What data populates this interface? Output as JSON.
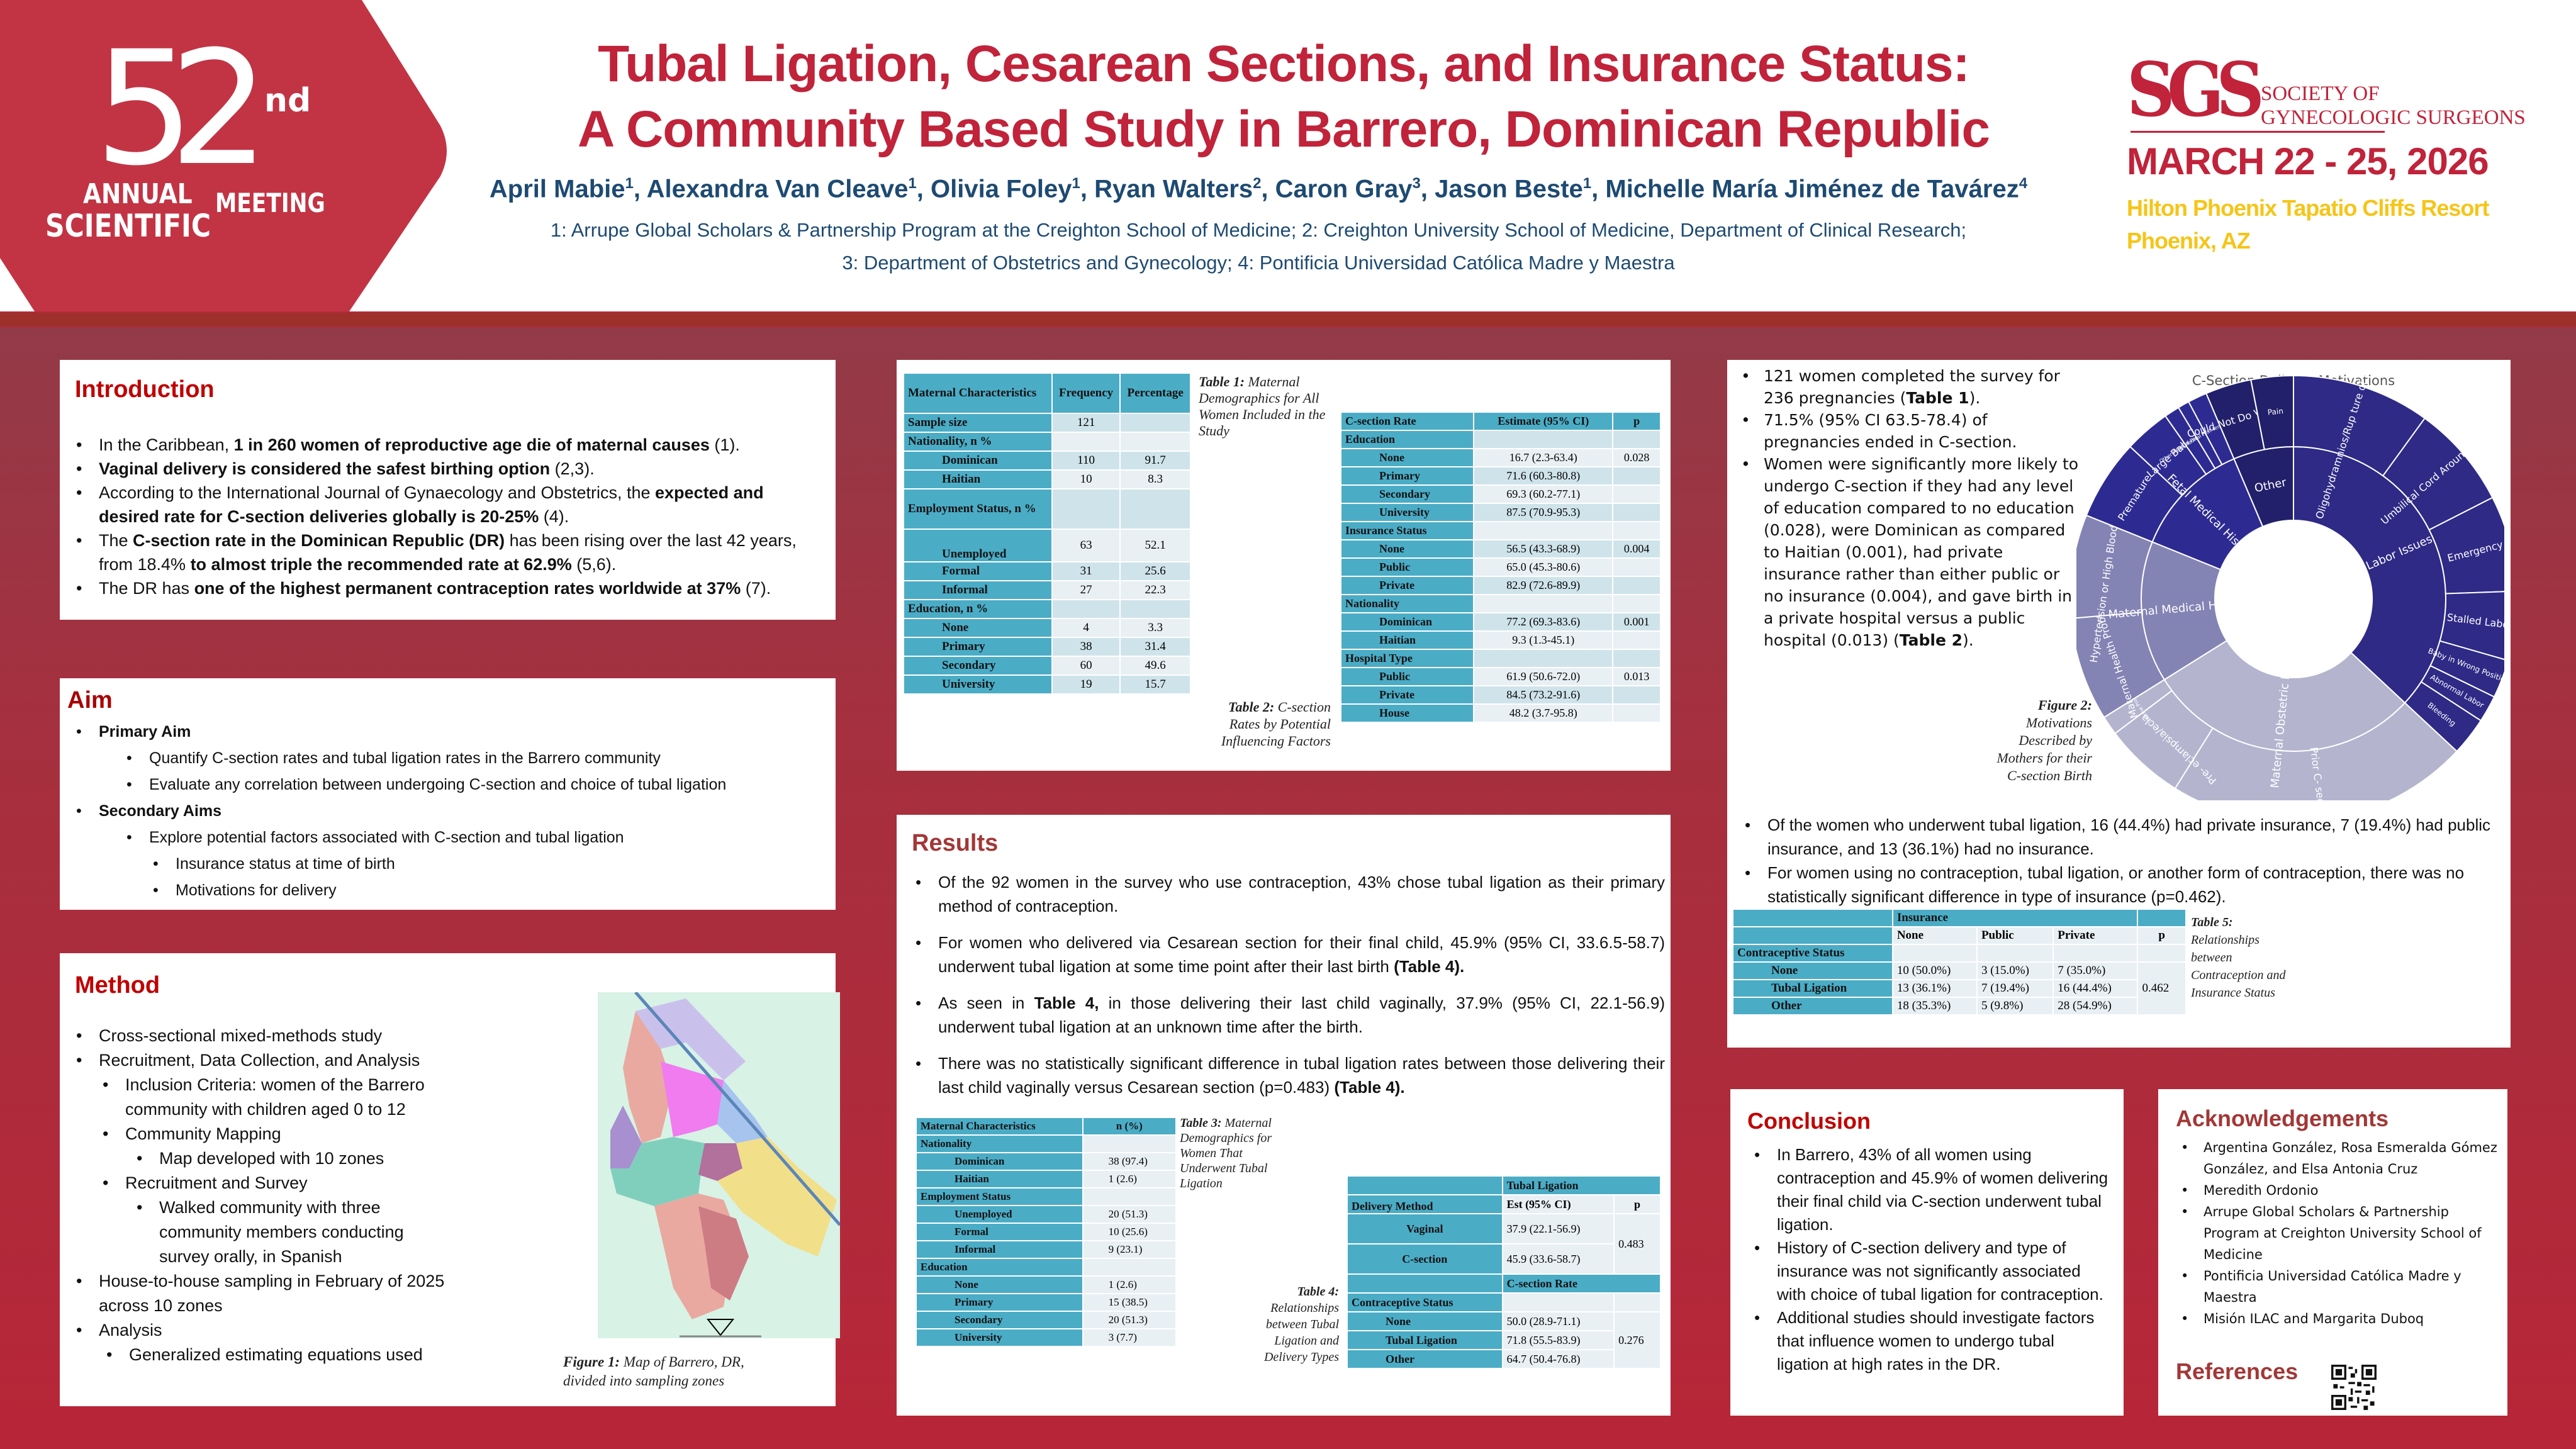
{
  "header": {
    "logo": {
      "number": "52",
      "suffix": "nd",
      "line1": "ANNUAL",
      "line2": "SCIENTIFIC",
      "line3": "MEETING"
    },
    "title_line1": "Tubal Ligation, Cesarean Sections, and Insurance Status:",
    "title_line2": "A Community Based Study in Barrero, Dominican Republic",
    "authors": [
      {
        "name": "April Mabie",
        "aff": "1"
      },
      {
        "name": "Alexandra Van Cleave",
        "aff": "1"
      },
      {
        "name": "Olivia Foley",
        "aff": "1"
      },
      {
        "name": "Ryan Walters",
        "aff": "2"
      },
      {
        "name": "Caron Gray",
        "aff": "3"
      },
      {
        "name": "Jason Beste",
        "aff": "1"
      },
      {
        "name": "Michelle María Jiménez de Tavárez",
        "aff": "4"
      }
    ],
    "affiliations_line1": "1: Arrupe Global Scholars & Partnership Program at the Creighton School of Medicine; 2: Creighton University School of Medicine, Department of Clinical Research;",
    "affiliations_line2": "3: Department of Obstetrics and Gynecology; 4: Pontificia Universidad Católica Madre y Maestra",
    "society": {
      "mark": "SGS",
      "name_line1": "SOCIETY OF",
      "name_line2": "GYNECOLOGIC SURGEONS"
    },
    "date": "MARCH 22 - 25, 2026",
    "venue_line1": "Hilton Phoenix Tapatio Cliffs Resort",
    "venue_line2": "Phoenix, AZ"
  },
  "colors": {
    "brand_red": "#c0233a",
    "navy": "#1d4a72",
    "gold": "#f5c518",
    "table_header": "#4bacc6"
  },
  "introduction": {
    "title": "Introduction",
    "bullets": [
      {
        "pre": "In the Caribbean, ",
        "bold": "1 in 260 women of reproductive age die of maternal causes",
        "post": " (1)."
      },
      {
        "pre": "",
        "bold": "Vaginal delivery is considered the safest birthing option",
        "post": " (2,3)."
      },
      {
        "pre": "According to the International Journal of Gynaecology and Obstetrics, the ",
        "bold": "expected and desired rate for C-section deliveries globally is 20-25%",
        "post": " (4)."
      },
      {
        "pre": "The ",
        "bold": "C-section rate in the Dominican Republic (DR)",
        "post": " has been rising over the last 42 years, from 18.4% ",
        "bold2": "to almost triple the recommended rate at 62.9%",
        "post2": " (5,6)."
      },
      {
        "pre": "The DR has ",
        "bold": "one of the highest permanent contraception rates worldwide at 37%",
        "post": " (7)."
      }
    ]
  },
  "aim": {
    "title": "Aim",
    "primary_label": "Primary Aim",
    "primary_items": [
      "Quantify C-section rates and tubal ligation rates in the Barrero community",
      "Evaluate any correlation between undergoing C-section and choice of tubal ligation"
    ],
    "secondary_label": "Secondary Aims",
    "secondary_item": "Explore potential factors associated with C-section and tubal ligation",
    "secondary_sub": [
      "Insurance status at time of birth",
      "Motivations for delivery"
    ]
  },
  "method": {
    "title": "Method",
    "items": [
      "Cross-sectional mixed-methods study",
      "Recruitment, Data Collection, and  Analysis",
      "Inclusion Criteria: women of the Barrero community with children aged 0 to 12",
      "Community Mapping",
      "Map developed with 10 zones",
      "Recruitment and Survey",
      "Walked community with three community members conducting survey orally, in Spanish",
      "House-to-house sampling in February of 2025 across 10 zones",
      "Analysis",
      "Generalized estimating equations used"
    ],
    "figure_label": "Figure 1:",
    "figure_caption": " Map of Barrero, DR, divided into sampling zones"
  },
  "table1": {
    "caption_label": "Table 1:",
    "caption": " Maternal Demographics for All Women Included in the Study",
    "headers": [
      "Maternal Characteristics",
      "Frequency",
      "Percentage"
    ],
    "rows": [
      {
        "label": "Sample size",
        "freq": "121",
        "pct": "",
        "indent": false
      },
      {
        "label": "Nationality, n %",
        "freq": "",
        "pct": "",
        "indent": false
      },
      {
        "label": "Dominican",
        "freq": "110",
        "pct": "91.7",
        "indent": true
      },
      {
        "label": "Haitian",
        "freq": "10",
        "pct": "8.3",
        "indent": true
      },
      {
        "label": "Employment Status, n %",
        "freq": "",
        "pct": "",
        "indent": false
      },
      {
        "label": "Unemployed",
        "freq": "63",
        "pct": "52.1",
        "indent": true
      },
      {
        "label": "Formal",
        "freq": "31",
        "pct": "25.6",
        "indent": true
      },
      {
        "label": "Informal",
        "freq": "27",
        "pct": "22.3",
        "indent": true
      },
      {
        "label": "Education, n %",
        "freq": "",
        "pct": "",
        "indent": false
      },
      {
        "label": "None",
        "freq": "4",
        "pct": "3.3",
        "indent": true
      },
      {
        "label": "Primary",
        "freq": "38",
        "pct": "31.4",
        "indent": true
      },
      {
        "label": "Secondary",
        "freq": "60",
        "pct": "49.6",
        "indent": true
      },
      {
        "label": "University",
        "freq": "19",
        "pct": "15.7",
        "indent": true
      }
    ]
  },
  "table2": {
    "caption_label": "Table 2:",
    "caption": " C-section Rates by Potential Influencing Factors",
    "headers": [
      "C-section Rate",
      "Estimate (95% CI)",
      "p"
    ],
    "rows": [
      {
        "label": "Education",
        "est": "",
        "p": "",
        "indent": false
      },
      {
        "label": "None",
        "est": "16.7 (2.3-63.4)",
        "p": "0.028",
        "indent": true
      },
      {
        "label": "Primary",
        "est": "71.6 (60.3-80.8)",
        "p": "",
        "indent": true
      },
      {
        "label": "Secondary",
        "est": "69.3 (60.2-77.1)",
        "p": "",
        "indent": true
      },
      {
        "label": "University",
        "est": "87.5 (70.9-95.3)",
        "p": "",
        "indent": true
      },
      {
        "label": "Insurance Status",
        "est": "",
        "p": "",
        "indent": false
      },
      {
        "label": "None",
        "est": "56.5 (43.3-68.9)",
        "p": "0.004",
        "indent": true
      },
      {
        "label": "Public",
        "est": "65.0 (45.3-80.6)",
        "p": "",
        "indent": true
      },
      {
        "label": "Private",
        "est": "82.9 (72.6-89.9)",
        "p": "",
        "indent": true
      },
      {
        "label": "Nationality",
        "est": "",
        "p": "",
        "indent": false
      },
      {
        "label": "Dominican",
        "est": "77.2 (69.3-83.6)",
        "p": "0.001",
        "indent": true
      },
      {
        "label": "Haitian",
        "est": "9.3 (1.3-45.1)",
        "p": "",
        "indent": true
      },
      {
        "label": "Hospital Type",
        "est": "",
        "p": "",
        "indent": false
      },
      {
        "label": "Public",
        "est": "61.9 (50.6-72.0)",
        "p": "0.013",
        "indent": true
      },
      {
        "label": "Private",
        "est": "84.5 (73.2-91.6)",
        "p": "",
        "indent": true
      },
      {
        "label": "House",
        "est": "48.2 (3.7-95.8)",
        "p": "",
        "indent": true
      }
    ]
  },
  "results": {
    "title": "Results",
    "b1": "Of the 92 women in the survey who use contraception, 43% chose tubal ligation as their primary method of contraception.",
    "b2_pre": "For women who delivered via Cesarean section for their final child, 45.9% (95% CI, 33.6.5-58.7) underwent tubal ligation at some time point after their last birth ",
    "b2_bold": "(Table 4).",
    "b3_pre": "As seen in ",
    "b3_bold": "Table 4,",
    "b3_post": " in those delivering their last child vaginally, 37.9% (95% CI, 22.1-56.9) underwent tubal ligation at an unknown time after the birth.",
    "b4_pre": "There was no statistically significant difference in tubal ligation rates between those delivering their last child vaginally versus Cesarean section (p=0.483) ",
    "b4_bold": "(Table 4)."
  },
  "table3": {
    "caption_label": "Table 3:",
    "caption": " Maternal Demographics for Women That Underwent Tubal Ligation",
    "headers": [
      "Maternal Characteristics",
      "n (%)"
    ],
    "rows": [
      {
        "label": "Nationality",
        "val": "",
        "indent": false
      },
      {
        "label": "Dominican",
        "val": "38 (97.4)",
        "indent": true
      },
      {
        "label": "Haitian",
        "val": "1 (2.6)",
        "indent": true
      },
      {
        "label": "Employment Status",
        "val": "",
        "indent": false
      },
      {
        "label": "Unemployed",
        "val": "20 (51.3)",
        "indent": true
      },
      {
        "label": "Formal",
        "val": "10 (25.6)",
        "indent": true
      },
      {
        "label": "Informal",
        "val": "9 (23.1)",
        "indent": true
      },
      {
        "label": "Education",
        "val": "",
        "indent": false
      },
      {
        "label": "None",
        "val": "1 (2.6)",
        "indent": true
      },
      {
        "label": "Primary",
        "val": "15 (38.5)",
        "indent": true
      },
      {
        "label": "Secondary",
        "val": "20 (51.3)",
        "indent": true
      },
      {
        "label": "University",
        "val": "3 (7.7)",
        "indent": true
      }
    ]
  },
  "table4": {
    "caption_label": "Table 4:",
    "caption": " Relationships between Tubal Ligation and Delivery Types",
    "group1": "Tubal Ligation",
    "col_method": "Delivery Method",
    "col_est": "Est (95% CI)",
    "col_p": "p",
    "rows1": [
      {
        "label": "Vaginal",
        "est": "37.9 (22.1-56.9)"
      },
      {
        "label": "C-section",
        "est": "45.9 (33.6-58.7)"
      }
    ],
    "p1": "0.483",
    "group2": "C-section Rate",
    "col_status": "Contraceptive Status",
    "rows2": [
      {
        "label": "None",
        "est": "50.0 (28.9-71.1)"
      },
      {
        "label": "Tubal Ligation",
        "est": "71.8 (55.5-83.9)"
      },
      {
        "label": "Other",
        "est": "64.7 (50.4-76.8)"
      }
    ],
    "p2": "0.276"
  },
  "findings": {
    "b1_pre": "121 women completed the survey for 236 pregnancies (",
    "b1_bold": "Table 1",
    "b1_post": ").",
    "b2": "71.5% (95% CI 63.5-78.4) of pregnancies ended in C-section.",
    "b3_pre": "Women were significantly more likely to undergo C-section if they had any level of education compared to no education (0.028), were Dominican as compared to Haitian (0.001), had private insurance rather than either public or no insurance (0.004), and gave birth in a private hospital versus a public hospital (0.013) (",
    "b3_bold": "Table 2",
    "b3_post": ").",
    "figure_label": "Figure 2:",
    "figure_caption": " Motivations Described by Mothers for their C-section Birth",
    "b4": "Of the women who underwent tubal ligation, 16 (44.4%) had private insurance, 7 (19.4%) had public insurance, and 13 (36.1%) had no insurance.",
    "b5": "For women using no contraception, tubal ligation, or another form of contraception, there was no statistically significant difference in type of insurance (p=0.462)."
  },
  "table5": {
    "caption_label": "Table 5:",
    "caption": " Relationships between Contraception and Insurance Status",
    "group": "Insurance",
    "cols": [
      "None",
      "Public",
      "Private",
      "p"
    ],
    "row_header": "Contraceptive Status",
    "rows": [
      {
        "label": "None",
        "none": "10 (50.0%)",
        "public": "3 (15.0%)",
        "private": "7 (35.0%)"
      },
      {
        "label": "Tubal Ligation",
        "none": "13 (36.1%)",
        "public": "7 (19.4%)",
        "private": "16 (44.4%)"
      },
      {
        "label": "Other",
        "none": "18 (35.3%)",
        "public": "5 (9.8%)",
        "private": "28 (54.9%)"
      }
    ],
    "p": "0.462"
  },
  "chart_data": {
    "type": "sunburst",
    "title": "C-Section Delivery Motivations",
    "value_note": "relative shares estimated from arc angles (no numbers printed)",
    "series": [
      {
        "name": "Labor Issues",
        "value": 133,
        "color": "#2e2a86",
        "children": [
          {
            "name": "Oligohydramnios/Rupture of Membranes",
            "label": "Oligohydramnios/Rup ture of Membranes",
            "value": 36
          },
          {
            "name": "Umbilical Cord Around Neck",
            "label": "Umbilical Cord Around Neck",
            "value": 27
          },
          {
            "name": "Emergency",
            "label": "Emergency",
            "value": 25
          },
          {
            "name": "Stalled Labor",
            "label": "Stalled Labor",
            "value": 18
          },
          {
            "name": "Baby in Wrong Position",
            "label": "Baby in Wrong Position",
            "value": 10
          },
          {
            "name": "Abnormal Labor",
            "label": "Abnormal Labor",
            "value": 7
          },
          {
            "name": "Bleeding",
            "label": "Bleeding",
            "value": 10
          }
        ]
      },
      {
        "name": "Maternal Obstetric History",
        "value": 105,
        "color": "#b4b4cf",
        "children": [
          {
            "name": "Prior C-section",
            "label": "Prior C- section",
            "value": 79
          },
          {
            "name": "Pre-eclampsia/eclampsia",
            "label": "Pre- eclampsia/ecla mpsia",
            "value": 21
          },
          {
            "name": "Uterine Prolapse",
            "label": "Uterine Prolapse",
            "value": 5
          }
        ]
      },
      {
        "name": "Maternal Medical History",
        "value": 54,
        "color": "#8383b4",
        "children": [
          {
            "name": "Maternal Health Problem",
            "label": "Maternal Health Problem",
            "value": 27
          },
          {
            "name": "Hypertension or High Blood Pressure",
            "label": "Hypertension or High Blood Pressure",
            "value": 27
          }
        ]
      },
      {
        "name": "Fetal Medical History",
        "value": 45,
        "color": "#2d2b92",
        "children": [
          {
            "name": "Premature",
            "label": "Premature",
            "value": 21
          },
          {
            "name": "Large Baby",
            "label": "Large Baby",
            "value": 12
          },
          {
            "name": "Other Fetal Medical Condition",
            "label": "Other Fetal Medical Condition",
            "value": 4
          },
          {
            "name": "Loss of Fetal Heart Tones",
            "label": "Loss of Fetal Heart Tones",
            "value": 3
          },
          {
            "name": "Post-term",
            "label": "Post-term",
            "value": 5
          }
        ]
      },
      {
        "name": "Other",
        "value": 23,
        "color": "#22206a",
        "children": [
          {
            "name": "Could Not Do Vaginal",
            "label": "Could Not Do Vaginal",
            "value": 12
          },
          {
            "name": "Pain",
            "label": "Pain",
            "value": 11
          }
        ]
      }
    ]
  },
  "conclusion": {
    "title": "Conclusion",
    "bullets": [
      "In Barrero, 43% of all women using contraception and 45.9% of women delivering their final child via C-section underwent tubal ligation.",
      "History of C-section delivery and type of insurance was not significantly associated with choice of tubal ligation for contraception.",
      "Additional studies should investigate factors that influence women to undergo tubal ligation at high rates in the DR."
    ]
  },
  "acknowledgements": {
    "title": "Acknowledgements",
    "bullets": [
      "Argentina González, Rosa Esmeralda Gómez González, and Elsa Antonia Cruz",
      "Meredith Ordonio",
      "Arrupe Global Scholars & Partnership Program at Creighton University School of Medicine",
      "Pontificia Universidad Católica Madre y Maestra",
      "Misión ILAC and Margarita Duboq"
    ],
    "references_title": "References"
  }
}
